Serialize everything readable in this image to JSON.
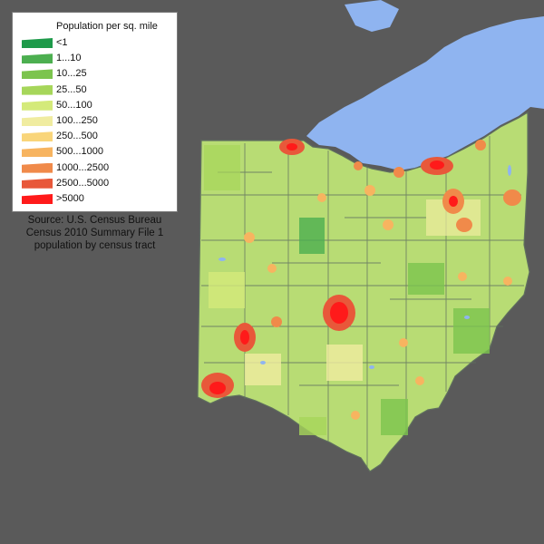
{
  "legend": {
    "title": "Population per sq. mile",
    "items": [
      {
        "label": "<1",
        "color": "#1e9a4a"
      },
      {
        "label": "1...10",
        "color": "#4caf50"
      },
      {
        "label": "10...25",
        "color": "#7cc44e"
      },
      {
        "label": "25...50",
        "color": "#a6d65a"
      },
      {
        "label": "50...100",
        "color": "#d4ea7a"
      },
      {
        "label": "100...250",
        "color": "#f0eca0"
      },
      {
        "label": "250...500",
        "color": "#f9d57a"
      },
      {
        "label": "500...1000",
        "color": "#f7b460"
      },
      {
        "label": "1000...2500",
        "color": "#f08a4a"
      },
      {
        "label": "2500...5000",
        "color": "#e8583a"
      },
      {
        "label": ">5000",
        "color": "#ff1a1a"
      }
    ]
  },
  "source": {
    "line1": "Source: U.S. Census Bureau",
    "line2": "Census 2010 Summary File 1",
    "line3": "population by census tract"
  },
  "colors": {
    "background": "#5a5a5a",
    "water": "#8fb4f0",
    "county_border": "#5f6f5f"
  }
}
